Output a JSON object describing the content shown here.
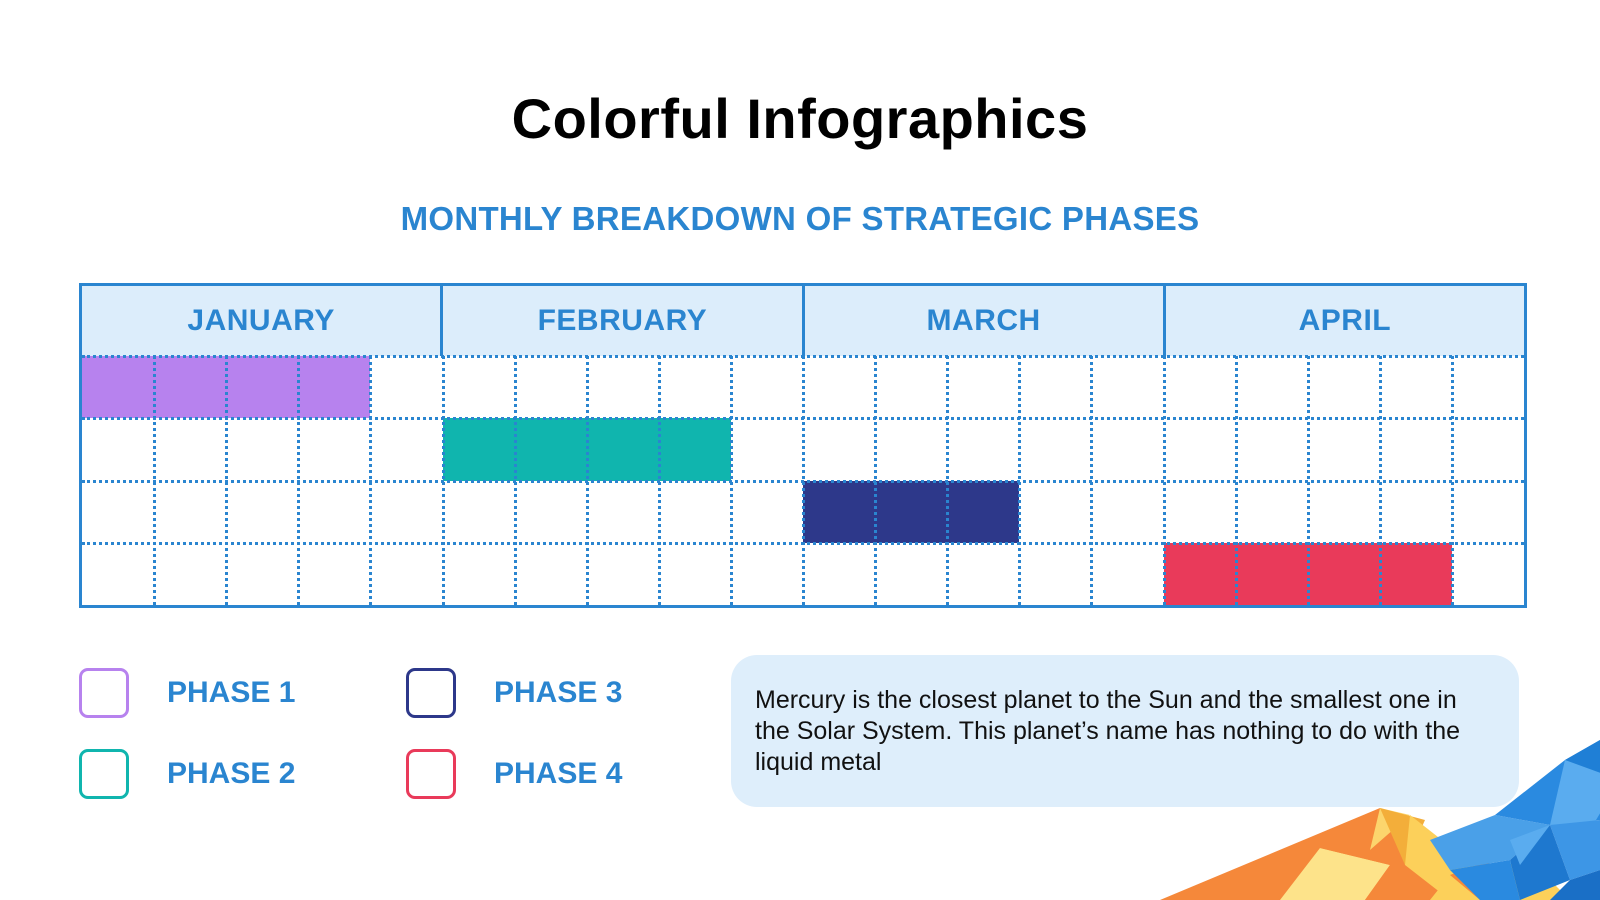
{
  "header": {
    "title": "Colorful Infographics",
    "subtitle": "MONTHLY BREAKDOWN OF STRATEGIC PHASES"
  },
  "colors": {
    "accent": "#2a85d0",
    "header_bg": "#dcedfb",
    "phase1": "#b782ee",
    "phase2": "#10b5ae",
    "phase3": "#2d388a",
    "phase4": "#e93a5a"
  },
  "gantt": {
    "months": [
      "JANUARY",
      "FEBRUARY",
      "MARCH",
      "APRIL"
    ],
    "subdivisions_per_month": 5
  },
  "legend": [
    {
      "label": "PHASE 1",
      "color": "#b782ee"
    },
    {
      "label": "PHASE 2",
      "color": "#10b5ae"
    },
    {
      "label": "PHASE 3",
      "color": "#2d388a"
    },
    {
      "label": "PHASE 4",
      "color": "#e93a5a"
    }
  ],
  "note": {
    "text": "Mercury is the closest planet to the Sun and the smallest one in the Solar System. This planet’s name has nothing to do with the liquid metal"
  },
  "chart_data": {
    "type": "gantt",
    "title": "Colorful Infographics",
    "subtitle": "MONTHLY BREAKDOWN OF STRATEGIC PHASES",
    "categories": [
      "JANUARY",
      "FEBRUARY",
      "MARCH",
      "APRIL"
    ],
    "unit": "month sub-period (5 per month)",
    "grid": true,
    "legend_position": "bottom-left",
    "series": [
      {
        "name": "PHASE 1",
        "color": "#b782ee",
        "row": 0,
        "start": 0,
        "end": 4
      },
      {
        "name": "PHASE 2",
        "color": "#10b5ae",
        "row": 1,
        "start": 5,
        "end": 9
      },
      {
        "name": "PHASE 3",
        "color": "#2d388a",
        "row": 2,
        "start": 10,
        "end": 13
      },
      {
        "name": "PHASE 4",
        "color": "#e93a5a",
        "row": 3,
        "start": 15,
        "end": 19
      }
    ]
  }
}
